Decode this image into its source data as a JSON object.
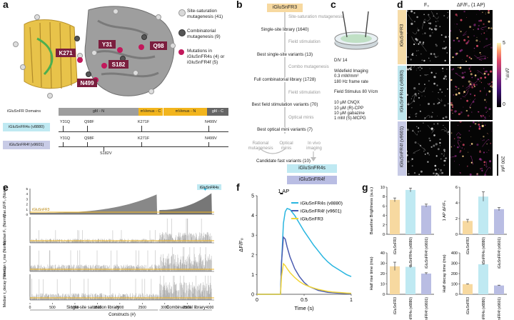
{
  "panels": {
    "a": "a",
    "b": "b",
    "c": "c",
    "d": "d",
    "e": "e",
    "f": "f",
    "g": "g"
  },
  "panel_a": {
    "legend": [
      {
        "label": "Site-saturation mutagenesis (41)",
        "color": "#d8d8d8"
      },
      {
        "label": "Combinatorial mutagenesis (9)",
        "color": "#555555"
      },
      {
        "label": "Mutations in iGluSnFR4s (4) or iGluSnFR4f (5)",
        "color": "#c2185b"
      }
    ],
    "mutation_labels": [
      "Y31",
      "Q98",
      "K271",
      "S182",
      "N499"
    ],
    "domains_title": "iGluSnFR Domains",
    "domains": [
      "gltI - N",
      "mVenus - C",
      "mVenus - N",
      "gltI - C"
    ],
    "ruler": [
      {
        "name": "iGluSnFR4s (v8880)",
        "ticks": [
          "Y31Q",
          "Q98F",
          "K271F",
          "N499V"
        ]
      },
      {
        "name": "iGluSnFR4f (v9601)",
        "ticks": [
          "Y31Q",
          "Q98F",
          "K271F",
          "N499V"
        ],
        "below": "S182V"
      }
    ]
  },
  "panel_b": {
    "start": "iGluSnFR3",
    "rows": [
      {
        "text": "Site-saturation mutagenesis",
        "kind": "step"
      },
      {
        "text": "Single-site library (1640)",
        "kind": "main"
      },
      {
        "text": "Field stimulation",
        "kind": "step"
      },
      {
        "text": "Best single-site variants (13)",
        "kind": "main"
      },
      {
        "text": "Combo mutagenesis",
        "kind": "step"
      },
      {
        "text": "Full combinatorial library (1728)",
        "kind": "main"
      },
      {
        "text": "Field stimulation",
        "kind": "step"
      },
      {
        "text": "Best field stimulation variants (70)",
        "kind": "main"
      },
      {
        "text": "Optical minis",
        "kind": "step"
      },
      {
        "text": "Best optical mini variants (7)",
        "kind": "main"
      }
    ],
    "rational": "Rational mutagenesis",
    "optical": "Optical minis",
    "invivo": "In vivo imaging",
    "candidate": "Candidate fast variants (10)",
    "final4s": "iGluSnFR4s",
    "final4f": "iGluSnFR4f"
  },
  "panel_c": {
    "lines": [
      "DIV 14",
      "",
      "Widefield Imaging",
      "0.3 mW/mm²",
      "180 Hz frame rate",
      "",
      "Field Stimulus 80 V/cm",
      "",
      "10 μM CNQX",
      "10 μM (R)-CPP",
      "10 μM gabazine",
      "1 mM (S)-MCPG"
    ]
  },
  "panel_d": {
    "col1": "F₀",
    "col2": "ΔF/F₀ (1 AP)",
    "rows": [
      "iGluSnFR3",
      "iGluSnFR4s (v8880)",
      "iGluSnFR4f (v9601)"
    ],
    "row_colors": [
      "#f6dca8",
      "#bfe6ee",
      "#c8cbe6"
    ],
    "cbar_ticks": [
      "5",
      "0"
    ],
    "cbar_label": "ΔF/F₀",
    "scale": "200 μM"
  },
  "panel_e": {
    "row_labels": [
      "Max ΔF/F₀ (Norm.)",
      "Median F₀ (Norm.)",
      "Median τ_rise (Norm.)",
      "Median τ_decay (Norm.)"
    ],
    "yticks": [
      "5",
      "4",
      "3",
      "2",
      "1",
      "0"
    ],
    "ref_label": "iGluSnFR3",
    "tag": "iGluSnFR4s",
    "xticks": [
      "0",
      "500",
      "1000",
      "1500",
      "2000",
      "2500",
      "3000",
      "3500",
      "4000"
    ],
    "xlabel": "Constructs (#)",
    "lib1": "Single-site saturation library",
    "lib2": "Combinatorial library"
  },
  "chart_data": [
    {
      "type": "line",
      "title": "1 AP",
      "xlabel": "Time (s)",
      "ylabel": "ΔF/F₀",
      "xlim": [
        0,
        1
      ],
      "ylim": [
        0,
        5
      ],
      "xticks": [
        "0",
        "0.5",
        "1"
      ],
      "yticks": [
        "0",
        "1",
        "2",
        "3",
        "4",
        "5"
      ],
      "x": [
        0,
        0.05,
        0.1,
        0.15,
        0.2,
        0.25,
        0.26,
        0.28,
        0.3,
        0.32,
        0.35,
        0.4,
        0.45,
        0.5,
        0.55,
        0.6,
        0.65,
        0.7,
        0.75,
        0.8,
        0.85,
        0.9,
        0.95,
        1.0
      ],
      "series": [
        {
          "name": "iGluSnFR4s (v8880)",
          "color": "#29b6e0",
          "values": [
            0,
            0,
            0,
            0,
            0,
            0,
            1.5,
            3.6,
            4.2,
            4.35,
            4.3,
            4.0,
            3.6,
            3.2,
            2.85,
            2.5,
            2.2,
            1.9,
            1.65,
            1.45,
            1.3,
            1.15,
            1.0,
            0.9
          ]
        },
        {
          "name": "iGluSnFR4f (v9601)",
          "color": "#4a5bb0",
          "values": [
            0,
            0,
            0,
            0,
            0,
            0,
            1.6,
            2.9,
            2.8,
            2.4,
            1.9,
            1.3,
            0.9,
            0.6,
            0.4,
            0.3,
            0.2,
            0.15,
            0.1,
            0.08,
            0.06,
            0.05,
            0.04,
            0.03
          ]
        },
        {
          "name": "iGluSnFR3",
          "color": "#f2d63a",
          "values": [
            0,
            0,
            0,
            0,
            0,
            0,
            0.9,
            1.55,
            1.45,
            1.3,
            1.1,
            0.85,
            0.65,
            0.5,
            0.4,
            0.32,
            0.25,
            0.2,
            0.15,
            0.12,
            0.1,
            0.08,
            0.06,
            0.05
          ]
        }
      ]
    },
    {
      "type": "bar",
      "ylabel": "Baseline Brightness (a.u.)",
      "categories": [
        "iGluSnFR3",
        "iGluSnFR4s (v8880)",
        "iGluSnFR4f (v9601)"
      ],
      "values": [
        7.3,
        9.4,
        6.1
      ],
      "errors": [
        0.4,
        0.4,
        0.3
      ],
      "ylim": [
        0,
        10
      ],
      "yticks": [
        "0",
        "2",
        "4",
        "6",
        "8",
        "10"
      ]
    },
    {
      "type": "bar",
      "ylabel": "1 AP ΔF/F₀",
      "categories": [
        "iGluSnFR3",
        "iGluSnFR4s (v8880)",
        "iGluSnFR4f (v9601)"
      ],
      "values": [
        1.7,
        4.8,
        3.2
      ],
      "errors": [
        0.2,
        0.6,
        0.2
      ],
      "ylim": [
        0,
        6
      ],
      "yticks": [
        "0",
        "2",
        "4",
        "6"
      ]
    },
    {
      "type": "bar",
      "ylabel": "Half rise time (ms)",
      "categories": [
        "iGluSnFR3",
        "iGluSnFR4s (v8880)",
        "iGluSnFR4f (v9601)"
      ],
      "values": [
        27,
        26.5,
        20
      ],
      "errors": [
        4,
        1,
        0.8
      ],
      "ylim": [
        0,
        40
      ],
      "yticks": [
        "0",
        "10",
        "20",
        "30",
        "40"
      ]
    },
    {
      "type": "bar",
      "ylabel": "Half decay time (ms)",
      "categories": [
        "iGluSnFR3",
        "iGluSnFR4s (v8880)",
        "iGluSnFR4f (v9601)"
      ],
      "values": [
        98,
        290,
        85
      ],
      "errors": [
        3,
        4,
        3
      ],
      "ylim": [
        0,
        400
      ],
      "yticks": [
        "0",
        "100",
        "200",
        "300",
        "400"
      ]
    }
  ],
  "colors": {
    "g3": "#f7d9a0",
    "g4s": "#bfe9f2",
    "g4f": "#b9bde3"
  }
}
